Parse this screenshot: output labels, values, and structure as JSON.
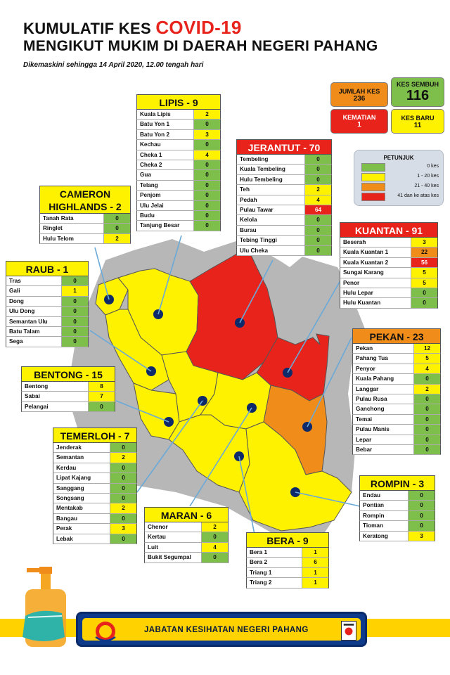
{
  "header": {
    "title_prefix": "KUMULATIF KES",
    "title_highlight": "COVID-19",
    "title_line2": "MENGIKUT MUKIM DI DAERAH NEGERI PAHANG",
    "subtitle": "Dikemaskini sehingga 14 April 2020, 12.00 tengah hari"
  },
  "stats": {
    "jumlah_label": "JUMLAH KES",
    "jumlah_value": "236",
    "sembuh_label": "KES SEMBUH",
    "sembuh_value": "116",
    "kematian_label": "KEMATIAN",
    "kematian_value": "1",
    "baru_label": "KES BARU",
    "baru_value": "11"
  },
  "legend": {
    "title": "PETUNJUK",
    "items": [
      {
        "label": "0 kes",
        "color": "#7ebe4a"
      },
      {
        "label": "1 - 20 kes",
        "color": "#fff200"
      },
      {
        "label": "21 - 40 kes",
        "color": "#f08c1a"
      },
      {
        "label": "41 dan ke atas kes",
        "color": "#e8231c"
      }
    ]
  },
  "districts": {
    "lipis": {
      "title": "LIPIS - 9",
      "rows": [
        {
          "name": "Kuala Lipis",
          "value": "2"
        },
        {
          "name": "Batu Yon 1",
          "value": "0"
        },
        {
          "name": "Batu Yon 2",
          "value": "3"
        },
        {
          "name": "Kechau",
          "value": "0"
        },
        {
          "name": "Cheka 1",
          "value": "4"
        },
        {
          "name": "Cheka 2",
          "value": "0"
        },
        {
          "name": "Gua",
          "value": "0"
        },
        {
          "name": "Telang",
          "value": "0"
        },
        {
          "name": "Penjom",
          "value": "0"
        },
        {
          "name": "Ulu Jelai",
          "value": "0"
        },
        {
          "name": "Budu",
          "value": "0"
        },
        {
          "name": "Tanjung Besar",
          "value": "0"
        }
      ]
    },
    "jerantut": {
      "title": "JERANTUT - 70",
      "rows": [
        {
          "name": "Tembeling",
          "value": "0"
        },
        {
          "name": "Kuala Tembeling",
          "value": "0"
        },
        {
          "name": "Hulu Tembeling",
          "value": "0"
        },
        {
          "name": "Teh",
          "value": "2"
        },
        {
          "name": "Pedah",
          "value": "4"
        },
        {
          "name": "Pulau Tawar",
          "value": "64"
        },
        {
          "name": "Kelola",
          "value": "0"
        },
        {
          "name": "Burau",
          "value": "0"
        },
        {
          "name": "Tebing Tinggi",
          "value": "0"
        },
        {
          "name": "Ulu Cheka",
          "value": "0"
        }
      ]
    },
    "cameron": {
      "title_line1": "CAMERON",
      "title_line2": "HIGHLANDS - 2",
      "rows": [
        {
          "name": "Tanah Rata",
          "value": "0"
        },
        {
          "name": "Ringlet",
          "value": "0"
        },
        {
          "name": "Hulu Telom",
          "value": "2"
        }
      ]
    },
    "raub": {
      "title": "RAUB - 1",
      "rows": [
        {
          "name": "Tras",
          "value": "0"
        },
        {
          "name": "Gali",
          "value": "1"
        },
        {
          "name": "Dong",
          "value": "0"
        },
        {
          "name": "Ulu Dong",
          "value": "0"
        },
        {
          "name": "Semantan Ulu",
          "value": "0"
        },
        {
          "name": "Batu Talam",
          "value": "0"
        },
        {
          "name": "Sega",
          "value": "0"
        }
      ]
    },
    "kuantan": {
      "title": "KUANTAN - 91",
      "rows": [
        {
          "name": "Beserah",
          "value": "3"
        },
        {
          "name": "Kuala Kuantan 1",
          "value": "22"
        },
        {
          "name": "Kuala Kuantan 2",
          "value": "56"
        },
        {
          "name": "Sungai Karang",
          "value": "5"
        },
        {
          "name": "Penor",
          "value": "5"
        },
        {
          "name": "Hulu Lepar",
          "value": "0"
        },
        {
          "name": "Hulu Kuantan",
          "value": "0"
        }
      ]
    },
    "pekan": {
      "title": "PEKAN - 23",
      "rows": [
        {
          "name": "Pekan",
          "value": "12"
        },
        {
          "name": "Pahang Tua",
          "value": "5"
        },
        {
          "name": "Penyor",
          "value": "4"
        },
        {
          "name": "Kuala Pahang",
          "value": "0"
        },
        {
          "name": "Langgar",
          "value": "2"
        },
        {
          "name": "Pulau Rusa",
          "value": "0"
        },
        {
          "name": "Ganchong",
          "value": "0"
        },
        {
          "name": "Temai",
          "value": "0"
        },
        {
          "name": "Pulau Manis",
          "value": "0"
        },
        {
          "name": "Lepar",
          "value": "0"
        },
        {
          "name": "Bebar",
          "value": "0"
        }
      ]
    },
    "bentong": {
      "title": "BENTONG - 15",
      "rows": [
        {
          "name": "Bentong",
          "value": "8"
        },
        {
          "name": "Sabai",
          "value": "7"
        },
        {
          "name": "Pelangai",
          "value": "0"
        }
      ]
    },
    "temerloh": {
      "title": "TEMERLOH - 7",
      "rows": [
        {
          "name": "Jenderak",
          "value": "0"
        },
        {
          "name": "Semantan",
          "value": "2"
        },
        {
          "name": "Kerdau",
          "value": "0"
        },
        {
          "name": "Lipat Kajang",
          "value": "0"
        },
        {
          "name": "Sanggang",
          "value": "0"
        },
        {
          "name": "Songsang",
          "value": "0"
        },
        {
          "name": "Mentakab",
          "value": "2"
        },
        {
          "name": "Bangau",
          "value": "0"
        },
        {
          "name": "Perak",
          "value": "3"
        },
        {
          "name": "Lebak",
          "value": "0"
        }
      ]
    },
    "rompin": {
      "title": "ROMPIN - 3",
      "rows": [
        {
          "name": "Endau",
          "value": "0"
        },
        {
          "name": "Pontian",
          "value": "0"
        },
        {
          "name": "Rompin",
          "value": "0"
        },
        {
          "name": "Tioman",
          "value": "0"
        },
        {
          "name": "Keratong",
          "value": "3"
        }
      ]
    },
    "maran": {
      "title": "MARAN - 6",
      "rows": [
        {
          "name": "Chenor",
          "value": "2"
        },
        {
          "name": "Kertau",
          "value": "0"
        },
        {
          "name": "Luit",
          "value": "4"
        },
        {
          "name": "Bukit Segumpal",
          "value": "0"
        }
      ]
    },
    "bera": {
      "title": "BERA - 9",
      "rows": [
        {
          "name": "Bera 1",
          "value": "1"
        },
        {
          "name": "Bera 2",
          "value": "6"
        },
        {
          "name": "Triang 1",
          "value": "1"
        },
        {
          "name": "Triang 2",
          "value": "1"
        }
      ]
    }
  },
  "footer": {
    "org_name": "JABATAN KESIHATAN NEGERI PAHANG"
  },
  "colors": {
    "zero": "#7ebe4a",
    "low": "#fff200",
    "mid": "#f08c1a",
    "high": "#e8231c",
    "map_gray": "#b7b7b7"
  }
}
